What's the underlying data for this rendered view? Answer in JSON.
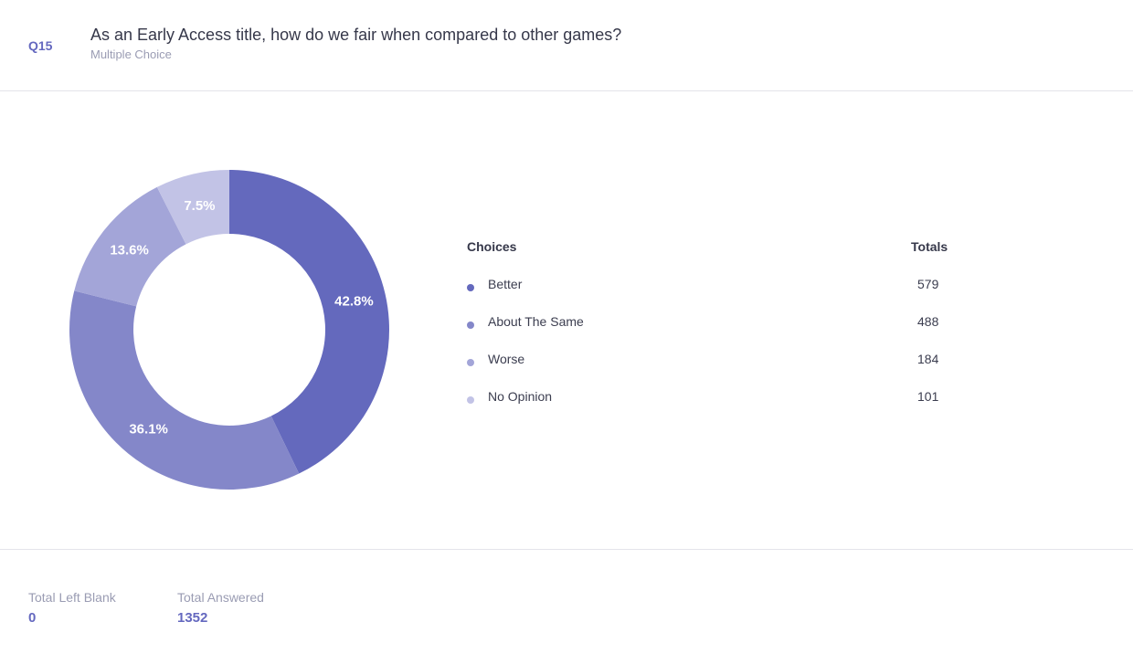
{
  "question": {
    "number": "Q15",
    "title": "As an Early Access title, how do we fair when compared to other games?",
    "type": "Multiple Choice"
  },
  "legend": {
    "choices_header": "Choices",
    "totals_header": "Totals"
  },
  "chart_data": {
    "type": "pie",
    "categories": [
      "Better",
      "About The Same",
      "Worse",
      "No Opinion"
    ],
    "values": [
      579,
      488,
      184,
      101
    ],
    "percent_labels": [
      "42.8%",
      "36.1%",
      "13.6%",
      "7.5%"
    ],
    "colors": [
      "#6469bd",
      "#8487c9",
      "#a3a5d8",
      "#c2c3e6"
    ],
    "donut": true
  },
  "footer": {
    "left_blank_label": "Total Left Blank",
    "left_blank_value": "0",
    "answered_label": "Total Answered",
    "answered_value": "1352"
  }
}
